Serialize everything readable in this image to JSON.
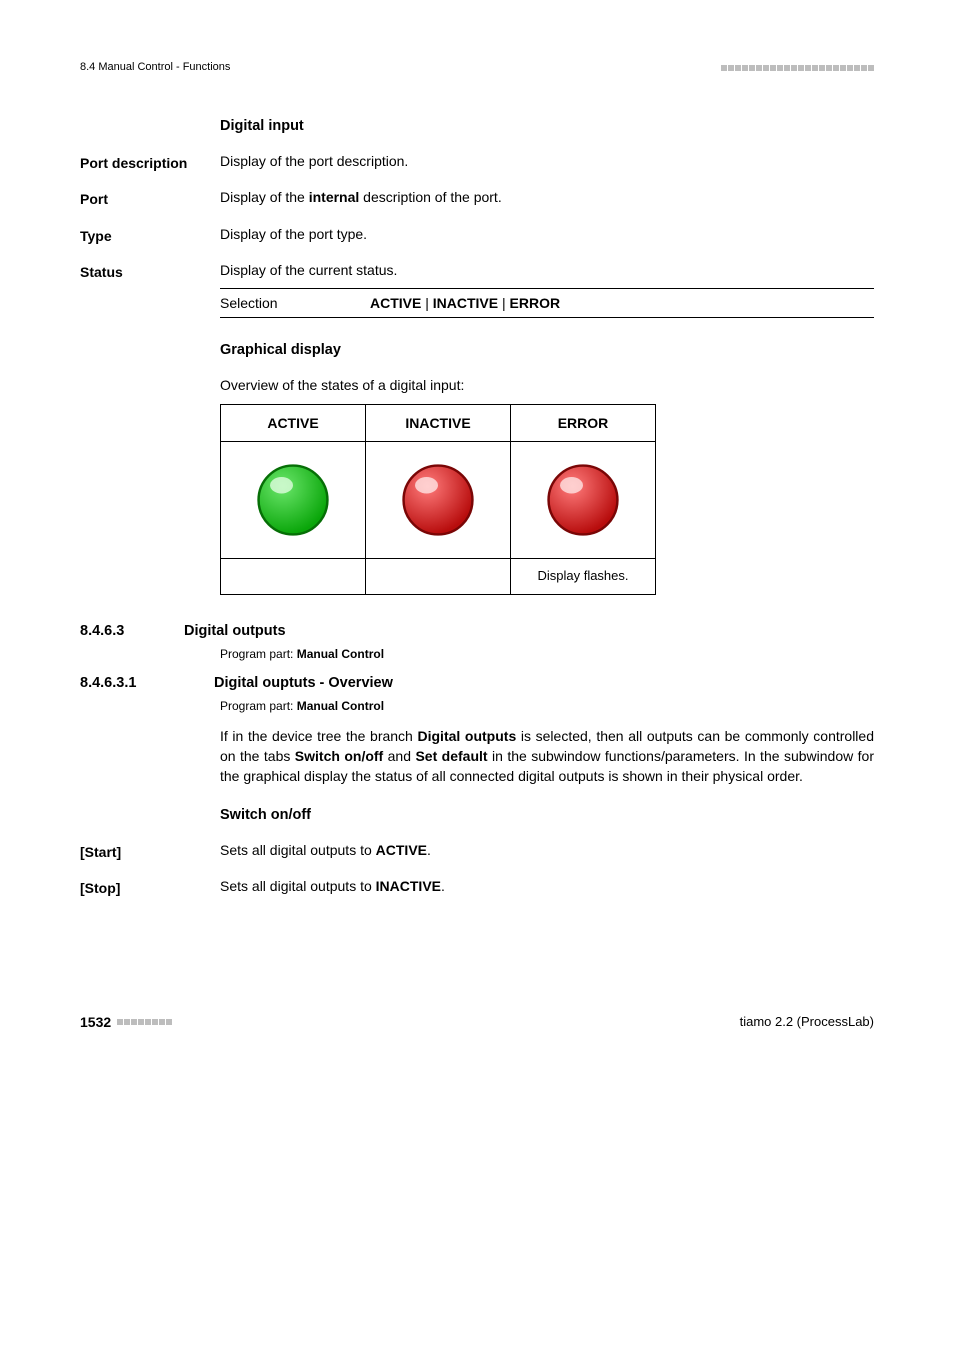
{
  "header": {
    "left_text": "8.4 Manual Control - Functions",
    "decor_square_color": "#bdbdbd",
    "decor_square_count": 22
  },
  "digital_input": {
    "heading": "Digital input",
    "fields": [
      {
        "label": "Port description",
        "body": "Display of the port description."
      },
      {
        "label": "Port",
        "body_prefix": "Display of the ",
        "body_bold": "internal",
        "body_suffix": " description of the port."
      },
      {
        "label": "Type",
        "body": "Display of the port type."
      },
      {
        "label": "Status",
        "body": "Display of the current status."
      }
    ],
    "selection_label": "Selection",
    "selection_values": [
      "ACTIVE",
      "INACTIVE",
      "ERROR"
    ]
  },
  "graphical": {
    "heading": "Graphical display",
    "intro": "Overview of the states of a digital input:",
    "columns": [
      "ACTIVE",
      "INACTIVE",
      "ERROR"
    ],
    "leds": [
      {
        "fill_top": "#6be66b",
        "fill_bot": "#0aa60a",
        "stroke": "#066f06",
        "highlight": "#e8ffe8"
      },
      {
        "fill_top": "#ff7b7b",
        "fill_bot": "#b80d0d",
        "stroke": "#7a0606",
        "highlight": "#ffecec"
      },
      {
        "fill_top": "#ff7b7b",
        "fill_bot": "#b80d0d",
        "stroke": "#7a0606",
        "highlight": "#ffecec"
      }
    ],
    "footnote": "Display flashes."
  },
  "sec_digital_outputs": {
    "number": "8.4.6.3",
    "title": "Digital outputs",
    "program_part_label": "Program part:",
    "program_part_value": "Manual Control"
  },
  "sec_overview": {
    "number": "8.4.6.3.1",
    "title": "Digital ouptuts - Overview",
    "program_part_label": "Program part:",
    "program_part_value": "Manual Control",
    "para_parts": [
      "If in the device tree the branch ",
      "Digital outputs",
      " is selected, then all outputs can be commonly controlled on the tabs ",
      "Switch on/off",
      " and ",
      "Set default",
      " in the subwindow functions/parameters. In the subwindow for the graphical display the status of all connected digital outputs is shown in their physical order."
    ]
  },
  "switch": {
    "heading": "Switch on/off",
    "rows": [
      {
        "label": "[Start]",
        "body_prefix": "Sets all digital outputs to ",
        "body_bold": "ACTIVE",
        "body_suffix": "."
      },
      {
        "label": "[Stop]",
        "body_prefix": "Sets all digital outputs to ",
        "body_bold": "INACTIVE",
        "body_suffix": "."
      }
    ]
  },
  "footer": {
    "page_number": "1532",
    "decor_square_count": 8,
    "decor_square_color": "#bdbdbd",
    "right_text": "tiamo 2.2 (ProcessLab)"
  }
}
